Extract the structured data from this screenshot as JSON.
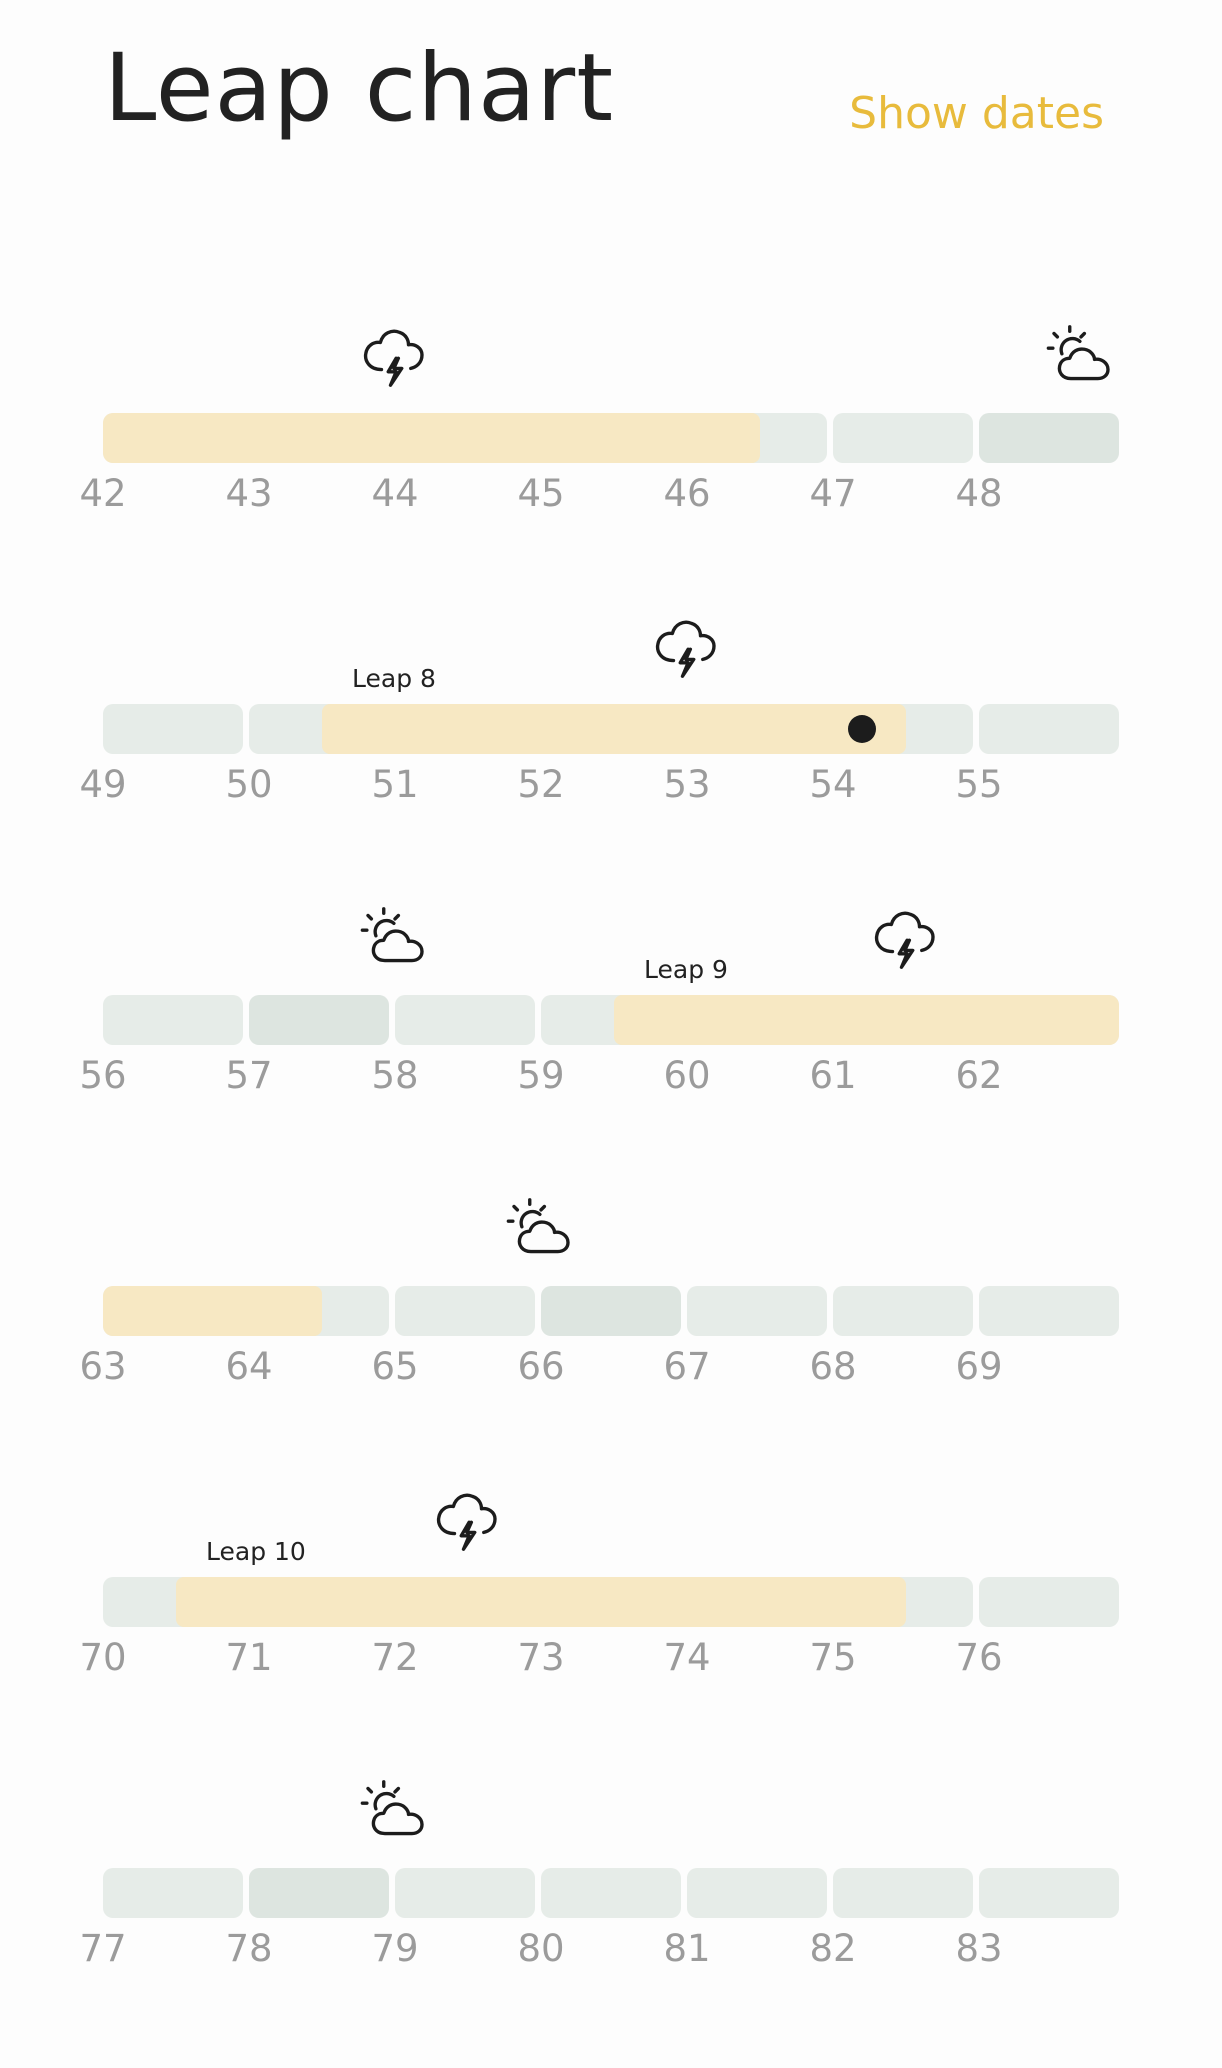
{
  "header": {
    "title": "Leap chart",
    "show_dates_label": "Show dates"
  },
  "colors": {
    "accent": "#e8bb3c",
    "leap_fill": "#f7e8c3",
    "week_bg": "#e6ece8",
    "week_bg_dark": "#dde5e0"
  },
  "rows": [
    {
      "weeks": [
        "42",
        "43",
        "44",
        "45",
        "46",
        "47",
        "48"
      ],
      "dark_weeks": [
        6
      ],
      "leap": {
        "start_week": 42,
        "end_week": 46.5,
        "label": ""
      },
      "current_week": null,
      "icons": [
        {
          "type": "storm-icon",
          "week": 44
        },
        {
          "type": "sunny-cloud-icon",
          "week": 48.7
        }
      ]
    },
    {
      "weeks": [
        "49",
        "50",
        "51",
        "52",
        "53",
        "54",
        "55"
      ],
      "dark_weeks": [],
      "leap": {
        "start_week": 50.5,
        "end_week": 54.5,
        "label": "Leap 8"
      },
      "current_week": 54.2,
      "icons": [
        {
          "type": "storm-icon",
          "week": 53
        }
      ]
    },
    {
      "weeks": [
        "56",
        "57",
        "58",
        "59",
        "60",
        "61",
        "62"
      ],
      "dark_weeks": [
        1
      ],
      "leap": {
        "start_week": 59.5,
        "end_week": 63,
        "label": "Leap 9"
      },
      "current_week": null,
      "icons": [
        {
          "type": "sunny-cloud-icon",
          "week": 58
        },
        {
          "type": "storm-icon",
          "week": 61.5
        }
      ]
    },
    {
      "weeks": [
        "63",
        "64",
        "65",
        "66",
        "67",
        "68",
        "69"
      ],
      "dark_weeks": [
        3
      ],
      "leap": {
        "start_week": 63,
        "end_week": 64.5,
        "label": ""
      },
      "current_week": null,
      "icons": [
        {
          "type": "sunny-cloud-icon",
          "week": 66
        }
      ]
    },
    {
      "weeks": [
        "70",
        "71",
        "72",
        "73",
        "74",
        "75",
        "76"
      ],
      "dark_weeks": [],
      "leap": {
        "start_week": 70.5,
        "end_week": 75.5,
        "label": "Leap 10"
      },
      "current_week": null,
      "icons": [
        {
          "type": "storm-icon",
          "week": 72.5
        }
      ]
    },
    {
      "weeks": [
        "77",
        "78",
        "79",
        "80",
        "81",
        "82",
        "83"
      ],
      "dark_weeks": [
        1
      ],
      "leap": null,
      "current_week": null,
      "icons": [
        {
          "type": "sunny-cloud-icon",
          "week": 79
        }
      ]
    }
  ]
}
